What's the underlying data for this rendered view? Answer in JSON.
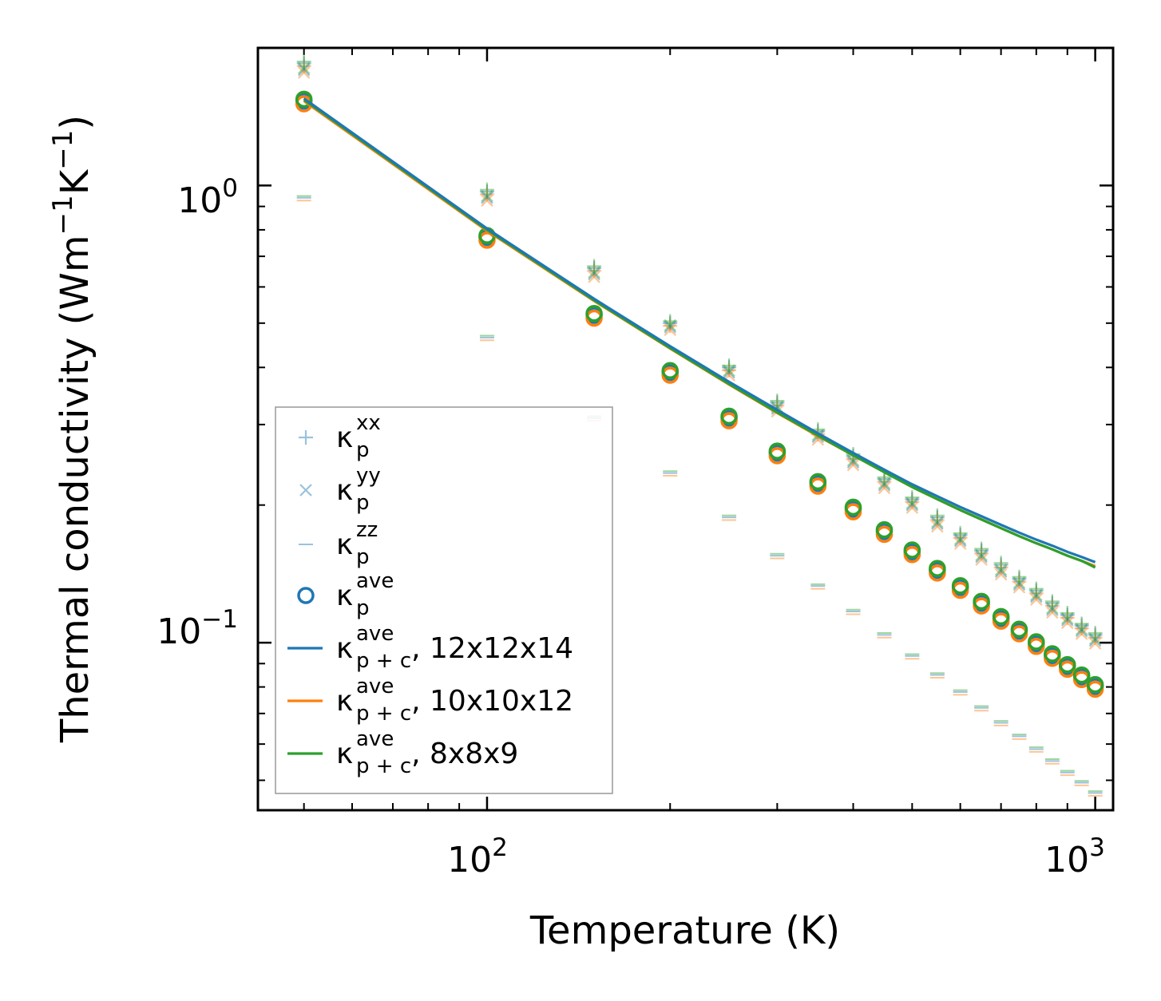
{
  "chart_data": {
    "type": "scatter",
    "title": "",
    "xlabel": "Temperature (K)",
    "ylabel_main": "Thermal conductivity (Wm",
    "ylabel_exp1": "−1",
    "ylabel_mid": "K",
    "ylabel_exp2": "−1",
    "ylabel_end": ")",
    "xscale": "log",
    "yscale": "log",
    "xlim": [
      42,
      1070
    ],
    "ylim": [
      0.043,
      2.0
    ],
    "xticks": [
      {
        "value": 100,
        "base": "10",
        "exp": "2"
      },
      {
        "value": 1000,
        "base": "10",
        "exp": "3"
      }
    ],
    "yticks": [
      {
        "value": 0.1,
        "base": "10",
        "exp": "−1"
      },
      {
        "value": 1.0,
        "base": "10",
        "exp": "0"
      }
    ],
    "legend_position": "lower-left",
    "x": [
      50,
      100,
      150,
      200,
      250,
      300,
      350,
      400,
      450,
      500,
      550,
      600,
      650,
      700,
      750,
      800,
      850,
      900,
      950,
      1000
    ],
    "series": [
      {
        "key": "kxx",
        "name": "κ_p^xx",
        "base": "κ",
        "sub": "p",
        "sup": "xx",
        "suffix": "",
        "marker": "plus",
        "variant": "12x12x14",
        "values": [
          1.85,
          0.97,
          0.66,
          0.5,
          0.4,
          0.335,
          0.29,
          0.256,
          0.228,
          0.206,
          0.188,
          0.172,
          0.159,
          0.148,
          0.138,
          0.13,
          0.122,
          0.115,
          0.109,
          0.104
        ]
      },
      {
        "key": "kyy",
        "name": "κ_p^yy",
        "base": "κ",
        "sub": "p",
        "sup": "yy",
        "suffix": "",
        "marker": "x",
        "variant": "12x12x14",
        "values": [
          1.79,
          0.94,
          0.64,
          0.49,
          0.39,
          0.325,
          0.282,
          0.248,
          0.221,
          0.2,
          0.182,
          0.167,
          0.154,
          0.143,
          0.134,
          0.126,
          0.118,
          0.112,
          0.106,
          0.101
        ]
      },
      {
        "key": "kzz",
        "name": "κ_p^zz",
        "base": "κ",
        "sub": "p",
        "sup": "zz",
        "suffix": "",
        "marker": "hline",
        "variant": "12x12x14",
        "values": [
          0.94,
          0.465,
          0.31,
          0.235,
          0.188,
          0.155,
          0.133,
          0.117,
          0.104,
          0.0935,
          0.085,
          0.078,
          0.072,
          0.0668,
          0.0624,
          0.0585,
          0.0551,
          0.052,
          0.0494,
          0.0469
        ]
      },
      {
        "key": "kave",
        "name": "κ_p^ave",
        "base": "κ",
        "sub": "p",
        "sup": "ave",
        "suffix": "",
        "marker": "circle",
        "variant": "12x12x14",
        "values": [
          1.53,
          0.77,
          0.52,
          0.39,
          0.31,
          0.26,
          0.223,
          0.196,
          0.175,
          0.158,
          0.144,
          0.132,
          0.122,
          0.113,
          0.106,
          0.0995,
          0.0937,
          0.0887,
          0.0842,
          0.0802
        ]
      },
      {
        "key": "kpc12",
        "name": "κ_p+c^ave, 12x12x14",
        "base": "κ",
        "sub": "p + c",
        "sup": "ave",
        "suffix": ", 12x12x14",
        "marker": "line",
        "color": "#1f77b4",
        "values": [
          1.55,
          0.805,
          0.565,
          0.445,
          0.372,
          0.323,
          0.287,
          0.26,
          0.239,
          0.222,
          0.209,
          0.198,
          0.189,
          0.181,
          0.174,
          0.168,
          0.163,
          0.158,
          0.154,
          0.15
        ]
      },
      {
        "key": "kpc10",
        "name": "κ_p+c^ave, 10x10x12",
        "base": "κ",
        "sub": "p + c",
        "sup": "ave",
        "suffix": ", 10x10x12",
        "marker": "line",
        "color": "#ff7f0e",
        "values": [
          1.53,
          0.796,
          0.559,
          0.44,
          0.367,
          0.318,
          0.283,
          0.257,
          0.236,
          0.219,
          0.206,
          0.195,
          0.186,
          0.178,
          0.171,
          0.165,
          0.16,
          0.155,
          0.151,
          0.147
        ]
      },
      {
        "key": "kpc8",
        "name": "κ_p+c^ave, 8x8x9",
        "base": "κ",
        "sub": "p + c",
        "sup": "ave",
        "suffix": ", 8x8x9",
        "marker": "line",
        "color": "#2ca02c",
        "values": [
          1.54,
          0.8,
          0.561,
          0.441,
          0.368,
          0.319,
          0.284,
          0.257,
          0.236,
          0.219,
          0.206,
          0.195,
          0.186,
          0.178,
          0.171,
          0.165,
          0.16,
          0.155,
          0.151,
          0.146
        ]
      }
    ],
    "colors": {
      "blue": "#1f77b4",
      "orange": "#ff7f0e",
      "green": "#2ca02c"
    }
  }
}
